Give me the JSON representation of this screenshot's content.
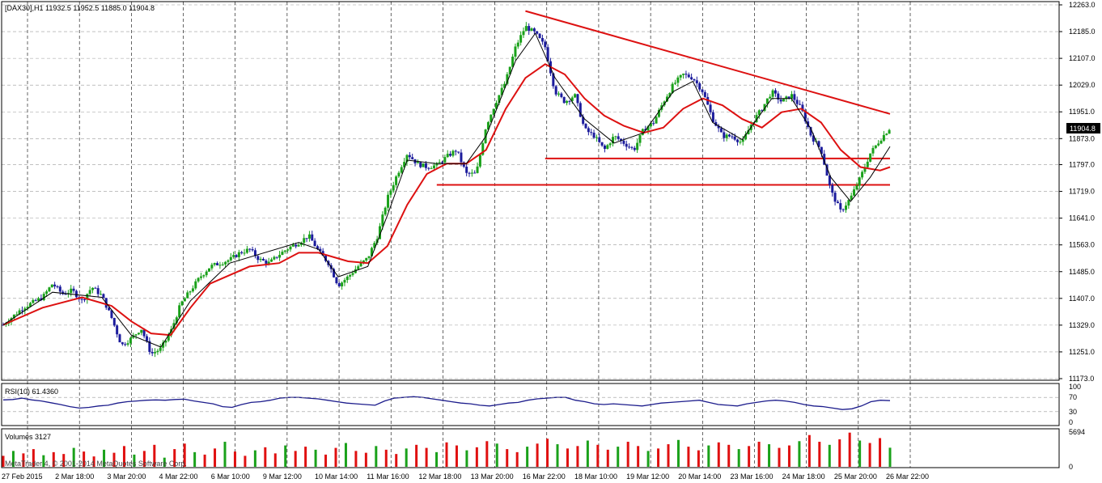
{
  "main": {
    "symbol_label": "[DAX30],H1  11932.5 11952.5 11885.0 11904.8",
    "current_price": "11904.8"
  },
  "rsi": {
    "label": "RSI(10) 61.4360"
  },
  "volume": {
    "label": "Volumes 3127"
  },
  "watermark": "MetaTrader 4, © 2001-2014 MetaQuotes Software Corp.",
  "colors": {
    "bull": "#1aa11a",
    "bear": "#1c1c9c",
    "ma_slow": "#dd1111",
    "ma_fast": "#000000",
    "rsi": "#1c1c8c",
    "vol_up": "#1aa11a",
    "vol_down": "#e01010",
    "trend": "#dd1111",
    "grid": "#9a9a9a"
  },
  "chart_data": [
    {
      "type": "candlestick",
      "title": "[DAX30],H1",
      "ohlc_last": {
        "open": 11932.5,
        "high": 11952.5,
        "low": 11885.0,
        "close": 11904.8
      },
      "ylim": [
        11173,
        12263
      ],
      "y_ticks": [
        "12263.0",
        "12185.0",
        "12107.0",
        "12029.0",
        "11951.0",
        "11873.0",
        "11797.0",
        "11719.0",
        "11641.0",
        "11563.0",
        "11485.0",
        "11407.0",
        "11329.0",
        "11251.0",
        "11173.0"
      ],
      "x_ticks": [
        "27 Feb 2015",
        "2 Mar 18:00",
        "3 Mar 20:00",
        "4 Mar 22:00",
        "6 Mar 10:00",
        "9 Mar 12:00",
        "10 Mar 14:00",
        "11 Mar 16:00",
        "12 Mar 18:00",
        "13 Mar 20:00",
        "16 Mar 22:00",
        "18 Mar 10:00",
        "19 Mar 12:00",
        "20 Mar 14:00",
        "23 Mar 16:00",
        "24 Mar 18:00",
        "25 Mar 20:00",
        "26 Mar 22:00"
      ],
      "close_path": [
        [
          0,
          11330
        ],
        [
          4,
          11380
        ],
        [
          8,
          11410
        ],
        [
          10,
          11450
        ],
        [
          12,
          11420
        ],
        [
          14,
          11430
        ],
        [
          16,
          11400
        ],
        [
          18,
          11440
        ],
        [
          20,
          11415
        ],
        [
          22,
          11350
        ],
        [
          24,
          11270
        ],
        [
          26,
          11290
        ],
        [
          28,
          11320
        ],
        [
          30,
          11245
        ],
        [
          32,
          11260
        ],
        [
          34,
          11310
        ],
        [
          36,
          11390
        ],
        [
          38,
          11430
        ],
        [
          40,
          11470
        ],
        [
          42,
          11500
        ],
        [
          44,
          11510
        ],
        [
          46,
          11520
        ],
        [
          48,
          11540
        ],
        [
          50,
          11550
        ],
        [
          52,
          11520
        ],
        [
          54,
          11510
        ],
        [
          56,
          11535
        ],
        [
          58,
          11555
        ],
        [
          60,
          11570
        ],
        [
          62,
          11590
        ],
        [
          64,
          11545
        ],
        [
          66,
          11510
        ],
        [
          68,
          11445
        ],
        [
          70,
          11470
        ],
        [
          72,
          11500
        ],
        [
          74,
          11525
        ],
        [
          76,
          11590
        ],
        [
          78,
          11700
        ],
        [
          80,
          11770
        ],
        [
          82,
          11830
        ],
        [
          84,
          11800
        ],
        [
          86,
          11790
        ],
        [
          88,
          11795
        ],
        [
          90,
          11820
        ],
        [
          92,
          11840
        ],
        [
          94,
          11770
        ],
        [
          96,
          11770
        ],
        [
          98,
          11910
        ],
        [
          100,
          11980
        ],
        [
          102,
          12040
        ],
        [
          104,
          12140
        ],
        [
          106,
          12200
        ],
        [
          108,
          12180
        ],
        [
          110,
          12140
        ],
        [
          112,
          12010
        ],
        [
          114,
          11980
        ],
        [
          116,
          12000
        ],
        [
          118,
          11900
        ],
        [
          120,
          11880
        ],
        [
          122,
          11840
        ],
        [
          124,
          11880
        ],
        [
          126,
          11860
        ],
        [
          128,
          11840
        ],
        [
          130,
          11900
        ],
        [
          132,
          11920
        ],
        [
          134,
          11980
        ],
        [
          136,
          12030
        ],
        [
          138,
          12060
        ],
        [
          140,
          12050
        ],
        [
          142,
          12010
        ],
        [
          144,
          11930
        ],
        [
          146,
          11880
        ],
        [
          148,
          11880
        ],
        [
          150,
          11860
        ],
        [
          152,
          11920
        ],
        [
          154,
          11960
        ],
        [
          156,
          12010
        ],
        [
          158,
          11980
        ],
        [
          160,
          12000
        ],
        [
          162,
          11960
        ],
        [
          164,
          11880
        ],
        [
          166,
          11840
        ],
        [
          168,
          11720
        ],
        [
          170,
          11660
        ],
        [
          172,
          11700
        ],
        [
          174,
          11760
        ],
        [
          176,
          11830
        ],
        [
          178,
          11870
        ],
        [
          180,
          11905
        ]
      ],
      "ma_slow_path": [
        [
          0,
          11330
        ],
        [
          8,
          11380
        ],
        [
          16,
          11410
        ],
        [
          22,
          11385
        ],
        [
          26,
          11340
        ],
        [
          30,
          11305
        ],
        [
          34,
          11300
        ],
        [
          38,
          11380
        ],
        [
          42,
          11450
        ],
        [
          50,
          11500
        ],
        [
          56,
          11510
        ],
        [
          60,
          11540
        ],
        [
          64,
          11540
        ],
        [
          70,
          11515
        ],
        [
          74,
          11510
        ],
        [
          78,
          11560
        ],
        [
          82,
          11680
        ],
        [
          86,
          11770
        ],
        [
          90,
          11800
        ],
        [
          94,
          11800
        ],
        [
          98,
          11840
        ],
        [
          102,
          11960
        ],
        [
          106,
          12050
        ],
        [
          110,
          12090
        ],
        [
          114,
          12060
        ],
        [
          118,
          11990
        ],
        [
          122,
          11940
        ],
        [
          126,
          11910
        ],
        [
          130,
          11890
        ],
        [
          134,
          11905
        ],
        [
          138,
          11960
        ],
        [
          142,
          11990
        ],
        [
          146,
          11970
        ],
        [
          150,
          11930
        ],
        [
          154,
          11905
        ],
        [
          158,
          11950
        ],
        [
          162,
          11960
        ],
        [
          166,
          11920
        ],
        [
          170,
          11840
        ],
        [
          174,
          11790
        ],
        [
          178,
          11780
        ],
        [
          180,
          11790
        ]
      ],
      "ma_fast_path": [
        [
          0,
          11330
        ],
        [
          10,
          11425
        ],
        [
          20,
          11410
        ],
        [
          26,
          11300
        ],
        [
          32,
          11265
        ],
        [
          38,
          11400
        ],
        [
          46,
          11510
        ],
        [
          60,
          11570
        ],
        [
          64,
          11550
        ],
        [
          68,
          11470
        ],
        [
          74,
          11500
        ],
        [
          78,
          11650
        ],
        [
          82,
          11810
        ],
        [
          88,
          11800
        ],
        [
          94,
          11800
        ],
        [
          98,
          11880
        ],
        [
          104,
          12100
        ],
        [
          108,
          12180
        ],
        [
          112,
          12050
        ],
        [
          118,
          11930
        ],
        [
          124,
          11860
        ],
        [
          130,
          11890
        ],
        [
          136,
          12010
        ],
        [
          140,
          12040
        ],
        [
          144,
          11920
        ],
        [
          150,
          11870
        ],
        [
          156,
          11990
        ],
        [
          160,
          11990
        ],
        [
          164,
          11900
        ],
        [
          168,
          11760
        ],
        [
          172,
          11690
        ],
        [
          176,
          11760
        ],
        [
          180,
          11850
        ]
      ],
      "trendlines": [
        {
          "from": [
            106,
            12245
          ],
          "to": [
            180,
            11945
          ]
        },
        {
          "from": [
            110,
            11815
          ],
          "to": [
            180,
            11815
          ]
        },
        {
          "from": [
            88,
            11738
          ],
          "to": [
            180,
            11738
          ]
        }
      ]
    },
    {
      "type": "line",
      "title": "RSI(10) 61.4360",
      "ylim": [
        0,
        100
      ],
      "y_ticks": [
        "100",
        "70",
        "30",
        "0"
      ],
      "values": [
        63,
        64,
        68,
        63,
        60,
        55,
        50,
        44,
        40,
        42,
        46,
        48,
        54,
        58,
        60,
        62,
        63,
        62,
        64,
        65,
        60,
        56,
        52,
        44,
        42,
        50,
        56,
        58,
        62,
        68,
        70,
        70,
        68,
        66,
        62,
        58,
        54,
        52,
        50,
        48,
        60,
        68,
        70,
        72,
        70,
        66,
        62,
        58,
        54,
        52,
        48,
        46,
        50,
        54,
        56,
        62,
        66,
        68,
        70,
        70,
        62,
        58,
        52,
        50,
        52,
        50,
        48,
        46,
        50,
        54,
        56,
        58,
        60,
        62,
        56,
        50,
        48,
        46,
        52,
        56,
        60,
        62,
        60,
        56,
        50,
        46,
        44,
        40,
        36,
        38,
        46,
        58,
        62,
        61
      ]
    },
    {
      "type": "bar",
      "title": "Volumes 3127",
      "ylim": [
        0,
        5694
      ],
      "y_ticks": [
        "5694",
        "0"
      ],
      "values": [
        1800,
        2600,
        2200,
        2900,
        1900,
        2400,
        2100,
        3100,
        2500,
        1700,
        2800,
        2300,
        3400,
        2000,
        2600,
        3600,
        1500,
        2900,
        3800,
        2400,
        2000,
        3000,
        4100,
        2500,
        1800,
        2700,
        3200,
        2200,
        3500,
        2600,
        3300,
        2800,
        2000,
        3100,
        3900,
        2600,
        2300,
        3400,
        2800,
        2100,
        3000,
        3600,
        3100,
        2400,
        4000,
        3500,
        2700,
        3200,
        4200,
        3800,
        2900,
        2400,
        3300,
        3800,
        4600,
        3700,
        3000,
        3400,
        4300,
        3600,
        2800,
        3300,
        4100,
        3400,
        2600,
        3000,
        3700,
        4400,
        3300,
        2700,
        3500,
        4000,
        3600,
        2900,
        3400,
        4100,
        3700,
        3100,
        3500,
        4200,
        5200,
        4100,
        3600,
        4500,
        5600,
        4300,
        3900,
        4700,
        3127
      ]
    }
  ]
}
